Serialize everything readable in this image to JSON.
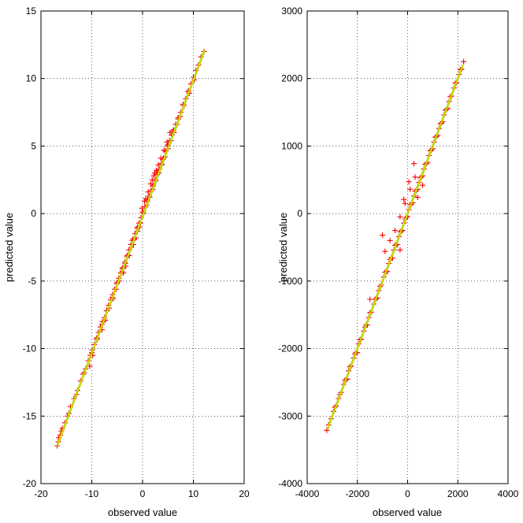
{
  "chart_data": [
    {
      "type": "scatter",
      "title": "",
      "xlabel": "observed value",
      "ylabel": "predicted value",
      "xlim": [
        -20,
        20
      ],
      "ylim": [
        -20,
        15
      ],
      "xticks": [
        -20,
        -10,
        0,
        10,
        20
      ],
      "yticks": [
        -20,
        -15,
        -10,
        -5,
        0,
        5,
        10,
        15
      ],
      "grid": true,
      "marker": "+",
      "colors": {
        "points": "#ff0000",
        "fit_line": "#7fd800",
        "fit_core": "#ffd000"
      },
      "fit_line": {
        "x": [
          -16.8,
          12.2
        ],
        "y": [
          -17.2,
          12.1
        ]
      },
      "points": {
        "x": [
          -16.8,
          -16.5,
          -16.2,
          -15.8,
          -15.3,
          -14.8,
          -14.2,
          -13.5,
          -12.8,
          -12.2,
          -11.7,
          -11.2,
          -10.7,
          -10.3,
          -9.9,
          -9.5,
          -9.1,
          -8.7,
          -8.3,
          -7.9,
          -7.5,
          -7.1,
          -6.7,
          -6.3,
          -5.9,
          -5.5,
          -5.1,
          -4.7,
          -4.3,
          -3.9,
          -3.5,
          -3.1,
          -2.7,
          -2.3,
          -1.9,
          -1.5,
          -1.1,
          -0.7,
          -0.3,
          0.1,
          0.5,
          0.9,
          1.3,
          1.7,
          2.1,
          2.5,
          2.9,
          3.3,
          3.7,
          4.1,
          4.5,
          4.9,
          5.3,
          5.7,
          6.1,
          6.5,
          7.0,
          7.5,
          8.0,
          8.5,
          9.0,
          9.5,
          10.0,
          10.5,
          11.0,
          11.5,
          12.1,
          -16.6,
          -16.0,
          -14.5,
          -13.0,
          -11.5,
          -10.0,
          -9.0,
          -8.0,
          -7.0,
          -6.0,
          -5.0,
          -4.0,
          -3.0,
          -2.0,
          -1.0,
          0.0,
          1.0,
          2.0,
          3.0,
          4.0,
          5.0,
          6.0,
          7.0,
          8.0,
          9.0,
          10.0,
          -10.4,
          -9.8,
          -8.9,
          -8.0,
          -7.3,
          -6.6,
          -5.8,
          -5.2,
          -4.6,
          -4.0,
          -3.4,
          -2.8,
          -2.2,
          -1.6,
          -1.0,
          -0.4,
          0.2,
          0.8,
          1.4,
          2.0,
          2.6,
          3.2,
          3.8,
          4.4,
          5.0,
          5.6,
          6.2,
          6.8,
          7.4,
          8.2,
          9.2,
          10.2,
          0.6,
          1.1,
          1.6,
          2.2,
          2.7,
          3.1,
          3.6,
          4.2,
          4.8,
          -0.6,
          -1.3,
          -1.8,
          -2.6,
          -3.3,
          -3.8,
          -0.1,
          0.4,
          1.9,
          2.4,
          5.4
        ],
        "y": [
          -17.2,
          -16.6,
          -16.4,
          -15.9,
          -15.5,
          -15.0,
          -14.3,
          -13.7,
          -13.1,
          -12.4,
          -11.9,
          -11.5,
          -10.9,
          -10.5,
          -10.1,
          -9.7,
          -9.3,
          -8.8,
          -8.4,
          -8.0,
          -7.7,
          -7.2,
          -6.8,
          -6.4,
          -6.0,
          -5.6,
          -5.2,
          -4.8,
          -4.4,
          -4.0,
          -3.6,
          -3.2,
          -2.7,
          -2.3,
          -1.9,
          -1.5,
          -1.1,
          -0.7,
          -0.3,
          0.1,
          0.5,
          0.9,
          1.3,
          1.7,
          2.1,
          2.5,
          2.9,
          3.3,
          3.7,
          4.1,
          4.6,
          5.0,
          5.4,
          5.8,
          6.2,
          6.6,
          7.0,
          7.5,
          8.0,
          8.5,
          9.0,
          9.6,
          10.1,
          10.6,
          11.0,
          11.6,
          12.0,
          -16.9,
          -16.1,
          -14.8,
          -13.4,
          -11.8,
          -10.3,
          -9.2,
          -8.2,
          -7.2,
          -6.2,
          -5.1,
          -4.1,
          -3.1,
          -2.0,
          -1.0,
          0.1,
          1.0,
          2.0,
          3.1,
          4.0,
          5.1,
          6.1,
          7.1,
          8.1,
          9.1,
          10.1,
          -11.3,
          -10.5,
          -9.3,
          -8.6,
          -7.9,
          -7.0,
          -6.3,
          -5.6,
          -5.0,
          -4.3,
          -3.7,
          -3.1,
          -2.5,
          -1.9,
          -1.3,
          -0.7,
          0.0,
          0.6,
          1.2,
          1.8,
          2.4,
          3.0,
          3.6,
          4.2,
          4.8,
          5.4,
          6.0,
          6.6,
          7.2,
          8.0,
          8.9,
          9.9,
          1.1,
          1.6,
          2.2,
          2.8,
          3.2,
          3.6,
          4.1,
          4.7,
          5.3,
          -1.0,
          -1.8,
          -2.3,
          -3.1,
          -3.9,
          -4.4,
          0.4,
          0.9,
          2.5,
          3.0,
          6.0
        ]
      }
    },
    {
      "type": "scatter",
      "title": "",
      "xlabel": "observed value",
      "ylabel": "predicted value",
      "xlim": [
        -4000,
        4000
      ],
      "ylim": [
        -4000,
        3000
      ],
      "xticks": [
        -4000,
        -2000,
        0,
        2000,
        4000
      ],
      "yticks": [
        -4000,
        -3000,
        -2000,
        -1000,
        0,
        1000,
        2000,
        3000
      ],
      "grid": true,
      "marker": "+",
      "colors": {
        "points": "#ff0000",
        "fit_line": "#7fd800",
        "fit_core": "#ffd000"
      },
      "fit_line": {
        "x": [
          -3200,
          2200
        ],
        "y": [
          -3200,
          2200
        ]
      },
      "points": {
        "x": [
          -3220,
          -3150,
          -3050,
          -2950,
          -2850,
          -2750,
          -2650,
          -2550,
          -2450,
          -2350,
          -2250,
          -2150,
          -2050,
          -1950,
          -1850,
          -1750,
          -1650,
          -1550,
          -1450,
          -1350,
          -1250,
          -1150,
          -1050,
          -950,
          -850,
          -750,
          -650,
          -550,
          -450,
          -350,
          -250,
          -150,
          -50,
          50,
          150,
          250,
          350,
          450,
          550,
          650,
          750,
          850,
          950,
          1050,
          1150,
          1250,
          1350,
          1450,
          1550,
          1650,
          1750,
          1850,
          1950,
          2050,
          2150,
          2230,
          -2900,
          -2700,
          -2500,
          -2300,
          -2100,
          -1900,
          -1700,
          -1500,
          -1300,
          -1100,
          -900,
          -700,
          -500,
          -300,
          -100,
          100,
          300,
          500,
          700,
          900,
          1100,
          1300,
          1500,
          1700,
          1900,
          2100,
          -2400,
          -2000,
          -1600,
          -1200,
          -800,
          -600,
          -400,
          -200,
          0,
          200,
          400,
          600,
          800,
          1000,
          1200,
          1400,
          1600,
          -900,
          -700,
          -500,
          -300,
          -100,
          100,
          300,
          -150,
          50,
          250,
          -1000,
          -1500,
          -300,
          400,
          600
        ],
        "y": [
          -3210,
          -3130,
          -3040,
          -2930,
          -2850,
          -2740,
          -2650,
          -2530,
          -2460,
          -2330,
          -2260,
          -2140,
          -2060,
          -1930,
          -1860,
          -1740,
          -1650,
          -1540,
          -1460,
          -1340,
          -1260,
          -1140,
          -1060,
          -940,
          -860,
          -740,
          -660,
          -540,
          -460,
          -340,
          -260,
          -140,
          -60,
          60,
          140,
          260,
          340,
          460,
          540,
          660,
          740,
          860,
          940,
          1060,
          1140,
          1260,
          1340,
          1460,
          1540,
          1660,
          1740,
          1860,
          1940,
          2060,
          2140,
          2250,
          -2870,
          -2680,
          -2470,
          -2270,
          -2080,
          -1870,
          -1680,
          -1470,
          -1270,
          -1080,
          -870,
          -680,
          -470,
          -270,
          -80,
          130,
          330,
          530,
          730,
          930,
          1130,
          1330,
          1530,
          1730,
          1930,
          2130,
          -2450,
          -2060,
          -1650,
          -1250,
          -860,
          -660,
          -460,
          -250,
          -40,
          160,
          360,
          560,
          760,
          960,
          1160,
          1360,
          1560,
          -560,
          -400,
          -250,
          -50,
          150,
          360,
          540,
          210,
          470,
          740,
          -320,
          -1270,
          -540,
          240,
          420
        ]
      }
    }
  ]
}
